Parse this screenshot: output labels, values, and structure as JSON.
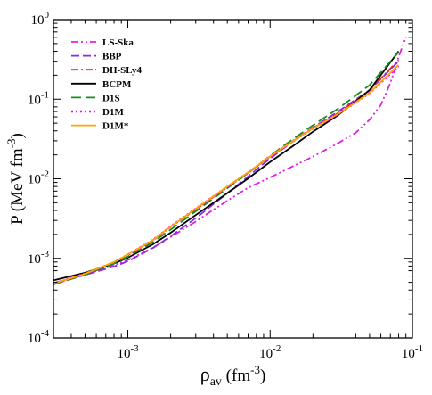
{
  "chart_data": {
    "type": "line",
    "xscale": "log",
    "yscale": "log",
    "xlim": [
      0.0003,
      0.1
    ],
    "ylim": [
      0.0001,
      1
    ],
    "xlabel": {
      "main": "ρ",
      "sub": "av",
      "unit": " (fm",
      "sup": "-3",
      "close": ")"
    },
    "ylabel": {
      "main": "P  (MeV fm",
      "sup": "-3",
      "close": ")"
    },
    "xticks": [
      {
        "value": 0.001,
        "base": "10",
        "exp": "-3"
      },
      {
        "value": 0.01,
        "base": "10",
        "exp": "-2"
      },
      {
        "value": 0.1,
        "base": "10",
        "exp": "-1"
      }
    ],
    "yticks": [
      {
        "value": 0.0001,
        "base": "10",
        "exp": "-4"
      },
      {
        "value": 0.001,
        "base": "10",
        "exp": "-3"
      },
      {
        "value": 0.01,
        "base": "10",
        "exp": "-2"
      },
      {
        "value": 0.1,
        "base": "10",
        "exp": "-1"
      },
      {
        "value": 1,
        "base": "10",
        "exp": "0"
      }
    ],
    "grid": false,
    "legend_position": "top-left",
    "series": [
      {
        "name": "LS-Ska",
        "color": "#e020e0",
        "dash": "dashdotdot",
        "x": [
          0.0003,
          0.0005,
          0.0008,
          0.001,
          0.0015,
          0.002,
          0.003,
          0.004,
          0.005,
          0.007,
          0.01,
          0.015,
          0.02,
          0.03,
          0.04,
          0.05,
          0.06,
          0.07,
          0.08,
          0.09
        ],
        "y": [
          0.00047,
          0.00063,
          0.00082,
          0.00095,
          0.00136,
          0.00185,
          0.0029,
          0.0041,
          0.0053,
          0.0077,
          0.0104,
          0.0148,
          0.019,
          0.028,
          0.038,
          0.055,
          0.085,
          0.16,
          0.34,
          0.6
        ]
      },
      {
        "name": "BBP",
        "color": "#8a2be2",
        "dash": "dash",
        "x": [
          0.0003,
          0.0005,
          0.0008,
          0.001,
          0.0015,
          0.002,
          0.003,
          0.005,
          0.007,
          0.01,
          0.015,
          0.02,
          0.03,
          0.05,
          0.08
        ],
        "y": [
          0.00049,
          0.00062,
          0.00079,
          0.00092,
          0.00135,
          0.0019,
          0.0032,
          0.0066,
          0.0107,
          0.018,
          0.031,
          0.044,
          0.07,
          0.13,
          0.3
        ]
      },
      {
        "name": "DH-SLy4",
        "color": "#e02020",
        "dash": "dashdot",
        "x": [
          0.0003,
          0.0005,
          0.0008,
          0.001,
          0.0015,
          0.002,
          0.003,
          0.005,
          0.007,
          0.01,
          0.015,
          0.02,
          0.03,
          0.05,
          0.08
        ],
        "y": [
          0.00048,
          0.00064,
          0.00088,
          0.0011,
          0.0017,
          0.0025,
          0.0041,
          0.0078,
          0.0119,
          0.019,
          0.031,
          0.043,
          0.067,
          0.13,
          0.31
        ]
      },
      {
        "name": "BCPM",
        "color": "#000000",
        "dash": "solid",
        "x": [
          0.0003,
          0.0005,
          0.0008,
          0.001,
          0.0015,
          0.002,
          0.003,
          0.005,
          0.007,
          0.01,
          0.015,
          0.02,
          0.03,
          0.05,
          0.08
        ],
        "y": [
          0.00053,
          0.00066,
          0.00086,
          0.00102,
          0.0015,
          0.0021,
          0.0035,
          0.0066,
          0.0101,
          0.0163,
          0.027,
          0.039,
          0.063,
          0.13,
          0.4
        ]
      },
      {
        "name": "D1S",
        "color": "#1a8c1a",
        "dash": "longdash",
        "x": [
          0.0003,
          0.0005,
          0.0008,
          0.001,
          0.0015,
          0.002,
          0.003,
          0.005,
          0.007,
          0.01,
          0.015,
          0.02,
          0.03,
          0.05,
          0.08
        ],
        "y": [
          0.00047,
          0.00062,
          0.00086,
          0.00105,
          0.0016,
          0.0023,
          0.0039,
          0.0076,
          0.0118,
          0.0195,
          0.033,
          0.047,
          0.076,
          0.15,
          0.39
        ]
      },
      {
        "name": "D1M",
        "color": "#ff00ff",
        "dash": "dot",
        "x": [
          0.0003,
          0.0005,
          0.0008,
          0.001,
          0.0015,
          0.002,
          0.003,
          0.005,
          0.007,
          0.01,
          0.015,
          0.02,
          0.03,
          0.05,
          0.08
        ],
        "y": [
          0.00048,
          0.00064,
          0.00089,
          0.00111,
          0.0017,
          0.0025,
          0.0042,
          0.0079,
          0.0119,
          0.019,
          0.031,
          0.043,
          0.065,
          0.12,
          0.26
        ]
      },
      {
        "name": "D1M*",
        "color": "#ffa500",
        "dash": "solid",
        "x": [
          0.0003,
          0.0005,
          0.0008,
          0.001,
          0.0015,
          0.002,
          0.003,
          0.005,
          0.007,
          0.01,
          0.015,
          0.02,
          0.03,
          0.05,
          0.08
        ],
        "y": [
          0.00048,
          0.00064,
          0.0009,
          0.00112,
          0.0017,
          0.0025,
          0.0042,
          0.008,
          0.012,
          0.0192,
          0.031,
          0.043,
          0.065,
          0.12,
          0.27
        ]
      }
    ]
  }
}
